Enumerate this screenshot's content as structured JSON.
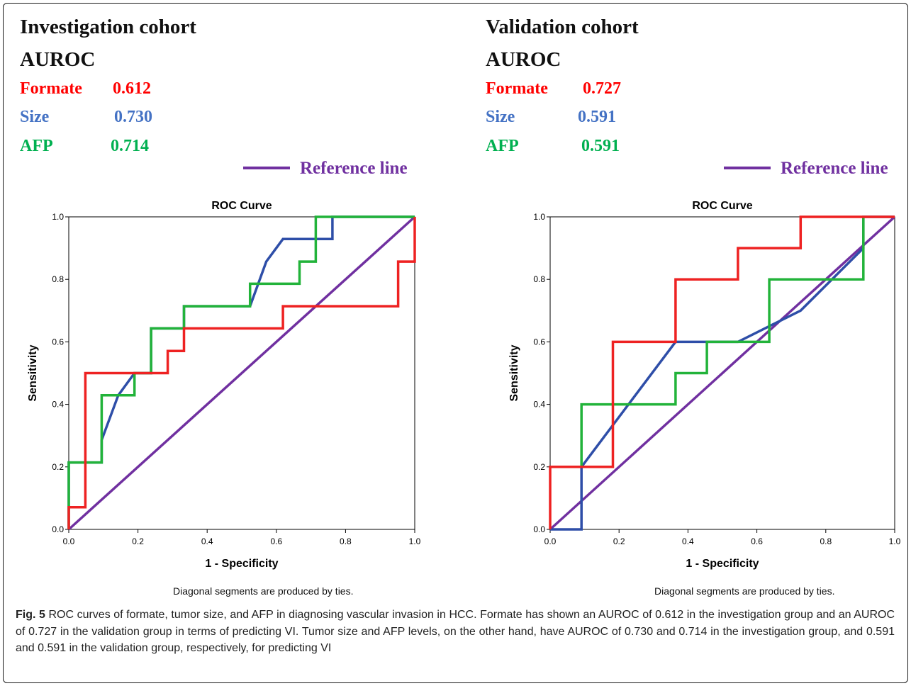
{
  "panels": [
    {
      "cohort_title": "Investigation cohort",
      "auroc_label": "AUROC",
      "auroc_rows": [
        {
          "name": "Formate",
          "value": "0.612",
          "color": "#ff0000"
        },
        {
          "name": "Size",
          "value": "0.730",
          "color": "#4472c4"
        },
        {
          "name": "AFP",
          "value": "0.714",
          "color": "#00b050"
        }
      ],
      "reference_label": "Reference line",
      "reference_color": "#7030a0",
      "note": "Diagonal segments are produced by ties."
    },
    {
      "cohort_title": "Validation cohort",
      "auroc_label": "AUROC",
      "auroc_rows": [
        {
          "name": "Formate",
          "value": "0.727",
          "color": "#ff0000"
        },
        {
          "name": "Size",
          "value": "0.591",
          "color": "#4472c4"
        },
        {
          "name": "AFP",
          "value": "0.591",
          "color": "#00b050"
        }
      ],
      "reference_label": "Reference line",
      "reference_color": "#7030a0",
      "note": "Diagonal segments are produced by ties."
    }
  ],
  "caption": {
    "fig_label": "Fig. 5",
    "text": " ROC curves of formate, tumor size, and AFP in diagnosing vascular invasion in HCC. Formate has shown an AUROC of 0.612 in the investigation group and an AUROC of 0.727 in the validation group in terms of predicting VI. Tumor size and AFP levels, on the other hand, have AUROC of 0.730 and 0.714 in the investigation group, and 0.591 and 0.591 in the validation group, respectively, for predicting VI"
  },
  "chart_data": [
    {
      "type": "line",
      "title": "ROC Curve",
      "xlabel": "1 - Specificity",
      "ylabel": "Sensitivity",
      "xlim": [
        0,
        1
      ],
      "ylim": [
        0,
        1
      ],
      "xticks": [
        "0.0",
        "0.2",
        "0.4",
        "0.6",
        "0.8",
        "1.0"
      ],
      "yticks": [
        "0.0",
        "0.2",
        "0.4",
        "0.6",
        "0.8",
        "1.0"
      ],
      "grid": false,
      "series": [
        {
          "name": "Reference line",
          "color": "#7030a0",
          "x": [
            0,
            1
          ],
          "y": [
            0,
            1
          ]
        },
        {
          "name": "Size",
          "color": "#2e4ea8",
          "x": [
            0,
            0,
            0.095,
            0.095,
            0.143,
            0.19,
            0.238,
            0.238,
            0.333,
            0.333,
            0.524,
            0.571,
            0.619,
            0.714,
            0.762,
            0.762,
            1.0
          ],
          "y": [
            0,
            0.214,
            0.214,
            0.286,
            0.429,
            0.5,
            0.5,
            0.643,
            0.643,
            0.714,
            0.714,
            0.857,
            0.929,
            0.929,
            0.929,
            1.0,
            1.0
          ]
        },
        {
          "name": "AFP",
          "color": "#22b33a",
          "x": [
            0,
            0,
            0.095,
            0.095,
            0.19,
            0.19,
            0.238,
            0.238,
            0.333,
            0.333,
            0.524,
            0.524,
            0.667,
            0.667,
            0.714,
            0.714,
            1.0
          ],
          "y": [
            0,
            0.214,
            0.214,
            0.429,
            0.429,
            0.5,
            0.5,
            0.643,
            0.643,
            0.714,
            0.714,
            0.786,
            0.786,
            0.857,
            0.857,
            1.0,
            1.0
          ]
        },
        {
          "name": "Formate",
          "color": "#ee2222",
          "x": [
            0,
            0,
            0.048,
            0.048,
            0.286,
            0.286,
            0.333,
            0.333,
            0.619,
            0.619,
            0.952,
            0.952,
            1.0,
            1.0
          ],
          "y": [
            0,
            0.071,
            0.071,
            0.5,
            0.5,
            0.571,
            0.571,
            0.643,
            0.643,
            0.714,
            0.714,
            0.857,
            0.857,
            1.0
          ]
        }
      ]
    },
    {
      "type": "line",
      "title": "ROC Curve",
      "xlabel": "1 - Specificity",
      "ylabel": "Sensitivity",
      "xlim": [
        0,
        1
      ],
      "ylim": [
        0,
        1
      ],
      "xticks": [
        "0.0",
        "0.2",
        "0.4",
        "0.6",
        "0.8",
        "1.0"
      ],
      "yticks": [
        "0.0",
        "0.2",
        "0.4",
        "0.6",
        "0.8",
        "1.0"
      ],
      "grid": false,
      "series": [
        {
          "name": "Reference line",
          "color": "#7030a0",
          "x": [
            0,
            1
          ],
          "y": [
            0,
            1
          ]
        },
        {
          "name": "Size",
          "color": "#2e4ea8",
          "x": [
            0,
            0.091,
            0.091,
            0.364,
            0.545,
            0.636,
            0.727,
            0.909,
            0.909,
            1.0
          ],
          "y": [
            0,
            0,
            0.2,
            0.6,
            0.6,
            0.65,
            0.7,
            0.9,
            1.0,
            1.0
          ]
        },
        {
          "name": "AFP",
          "color": "#22b33a",
          "x": [
            0.091,
            0.091,
            0.364,
            0.364,
            0.455,
            0.455,
            0.636,
            0.636,
            0.909,
            0.909
          ],
          "y": [
            0.2,
            0.4,
            0.4,
            0.5,
            0.5,
            0.6,
            0.6,
            0.8,
            0.8,
            1.0
          ]
        },
        {
          "name": "Formate",
          "color": "#ee2222",
          "x": [
            0,
            0,
            0.182,
            0.182,
            0.364,
            0.364,
            0.545,
            0.545,
            0.727,
            0.727,
            1.0
          ],
          "y": [
            0,
            0.2,
            0.2,
            0.6,
            0.6,
            0.8,
            0.8,
            0.9,
            0.9,
            1.0,
            1.0
          ]
        }
      ]
    }
  ]
}
